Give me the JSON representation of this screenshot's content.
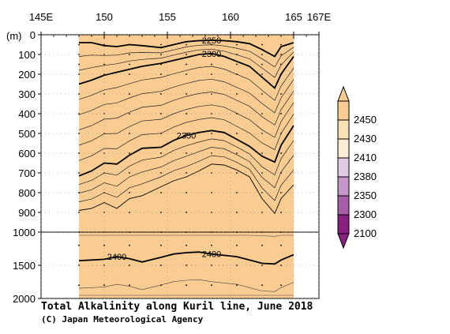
{
  "chart_data": {
    "type": "heatmap",
    "title": "Total Alkalinity along Kuril line, June 2018",
    "credit": "(C) Japan Meteorological Agency",
    "xlabel": "",
    "ylabel": "(m)",
    "xlim": [
      145,
      167
    ],
    "ylim_upper": [
      0,
      1000
    ],
    "ylim_lower": [
      1000,
      2000
    ],
    "x_ticks": [
      {
        "value": 145,
        "label": "145E"
      },
      {
        "value": 150,
        "label": "150"
      },
      {
        "value": 155,
        "label": "155"
      },
      {
        "value": 160,
        "label": "160"
      },
      {
        "value": 165,
        "label": "165"
      },
      {
        "value": 167,
        "label": "167E"
      }
    ],
    "y_ticks": [
      {
        "value": 0,
        "label": "0"
      },
      {
        "value": 100,
        "label": "100"
      },
      {
        "value": 200,
        "label": "200"
      },
      {
        "value": 300,
        "label": "300"
      },
      {
        "value": 400,
        "label": "400"
      },
      {
        "value": 500,
        "label": "500"
      },
      {
        "value": 600,
        "label": "600"
      },
      {
        "value": 700,
        "label": "700"
      },
      {
        "value": 800,
        "label": "800"
      },
      {
        "value": 900,
        "label": "900"
      },
      {
        "value": 1000,
        "label": "1000"
      },
      {
        "value": 1500,
        "label": "1500"
      },
      {
        "value": 2000,
        "label": "2000"
      }
    ],
    "section_x": [
      148.0,
      149.0,
      150.0,
      151.0,
      152.0,
      153.0,
      154.5,
      155.5,
      156.5,
      157.5,
      158.5,
      159.5,
      160.5,
      161.5,
      162.5,
      163.5,
      164.0,
      165.0
    ],
    "legend": {
      "levels": [
        "2450",
        "2430",
        "2410",
        "2380",
        "2350",
        "2300",
        "2100"
      ],
      "colors": [
        "#f9cd92",
        "#fce0b6",
        "#fdecd4",
        "#e1cbe3",
        "#c596ca",
        "#a65ea9",
        "#88207f"
      ]
    },
    "contours": [
      {
        "value": 2250,
        "label": "2250",
        "depth": [
          40,
          40,
          55,
          60,
          50,
          55,
          65,
          50,
          35,
          30,
          28,
          30,
          35,
          45,
          75,
          110,
          60,
          40
        ],
        "bold": true
      },
      {
        "value": 2300,
        "label": "2300",
        "depth": [
          250,
          230,
          205,
          190,
          175,
          160,
          145,
          130,
          115,
          100,
          95,
          110,
          135,
          160,
          215,
          270,
          200,
          110
        ],
        "bold": true
      },
      {
        "value": 2350,
        "label": "2350",
        "depth": [
          715,
          690,
          650,
          655,
          610,
          575,
          570,
          535,
          510,
          495,
          485,
          495,
          530,
          565,
          615,
          645,
          560,
          460
        ],
        "bold": true
      },
      {
        "value": 2380,
        "label": "",
        "depth": [
          890,
          880,
          850,
          880,
          830,
          815,
          770,
          740,
          720,
          690,
          655,
          660,
          685,
          720,
          830,
          905,
          830,
          760
        ],
        "bold": false
      },
      {
        "value": 2400,
        "label": "2400",
        "depth": [
          1430,
          1420,
          1410,
          1370,
          1400,
          1450,
          1380,
          1330,
          1310,
          1300,
          1330,
          1350,
          1370,
          1420,
          1470,
          1480,
          1420,
          1340
        ],
        "bold": true
      }
    ],
    "fill_levels": [
      {
        "from": "top",
        "to": 2250,
        "color": "#88207f"
      },
      {
        "from": 2250,
        "to": 2300,
        "color": "#a65ea9"
      },
      {
        "from": 2300,
        "to": 2350,
        "color": "#c596ca"
      },
      {
        "from": 2350,
        "to": 2380,
        "color": "#e1cbe3"
      },
      {
        "from": 2380,
        "to": 2400,
        "color": "#fdecd4"
      },
      {
        "from": 2400,
        "to": 2410,
        "color": "#fce0b6"
      },
      {
        "from": 2410,
        "to": "bottom",
        "color": "#f9cd92"
      }
    ],
    "grid": true,
    "legend_position": "right"
  }
}
